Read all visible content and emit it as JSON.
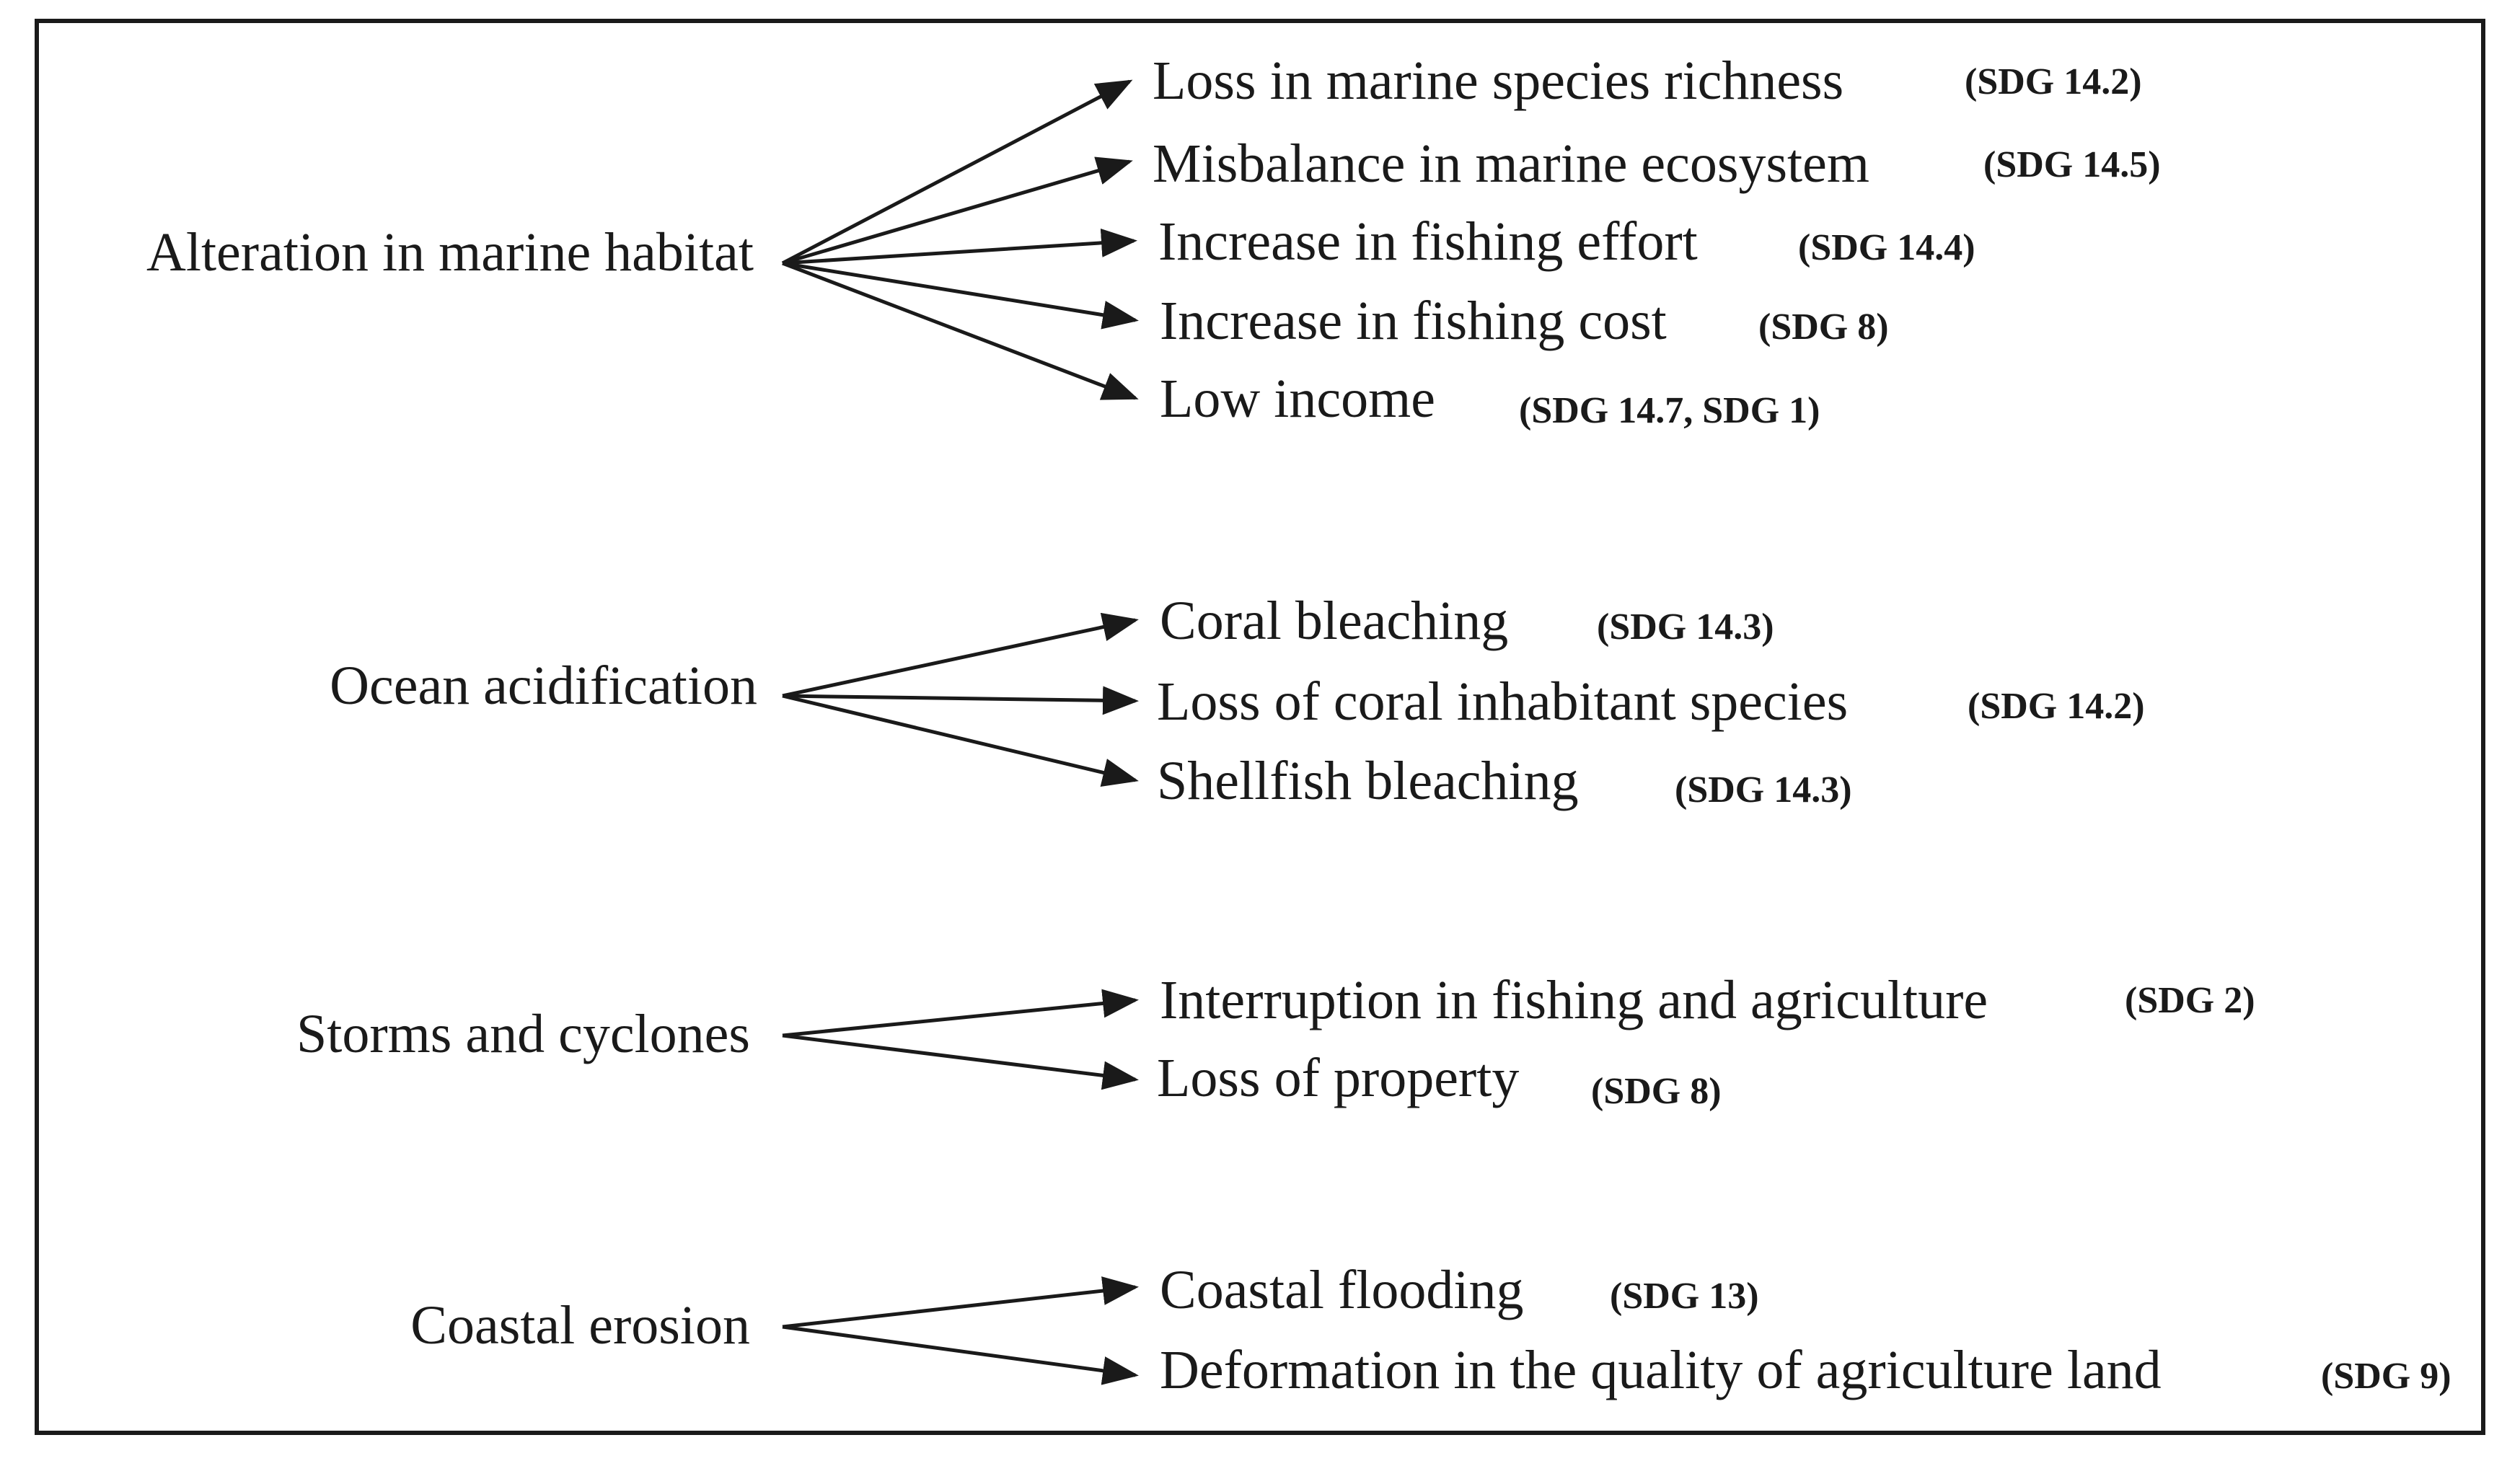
{
  "groups": [
    {
      "cause": "Alteration in marine habitat",
      "effects": [
        {
          "label": "Loss in marine species richness",
          "sdg": "(SDG 14.2)"
        },
        {
          "label": "Misbalance in marine ecosystem",
          "sdg": "(SDG 14.5)"
        },
        {
          "label": "Increase in fishing effort",
          "sdg": "(SDG 14.4)"
        },
        {
          "label": "Increase in fishing cost",
          "sdg": "(SDG 8)"
        },
        {
          "label": "Low income",
          "sdg": "(SDG 14.7, SDG 1)"
        }
      ]
    },
    {
      "cause": "Ocean acidification",
      "effects": [
        {
          "label": "Coral bleaching",
          "sdg": "(SDG 14.3)"
        },
        {
          "label": "Loss of coral inhabitant species",
          "sdg": "(SDG 14.2)"
        },
        {
          "label": "Shellfish bleaching",
          "sdg": "(SDG 14.3)"
        }
      ]
    },
    {
      "cause": "Storms and cyclones",
      "effects": [
        {
          "label": "Interruption in fishing and agriculture",
          "sdg": "(SDG 2)"
        },
        {
          "label": "Loss of property",
          "sdg": "(SDG 8)"
        }
      ]
    },
    {
      "cause": "Coastal erosion",
      "effects": [
        {
          "label": "Coastal flooding",
          "sdg": "(SDG 13)"
        },
        {
          "label": "Deformation in the quality of agriculture land",
          "sdg": "(SDG 9)"
        }
      ]
    }
  ],
  "colors": {
    "ink": "#1a1a1a",
    "background": "#ffffff"
  }
}
